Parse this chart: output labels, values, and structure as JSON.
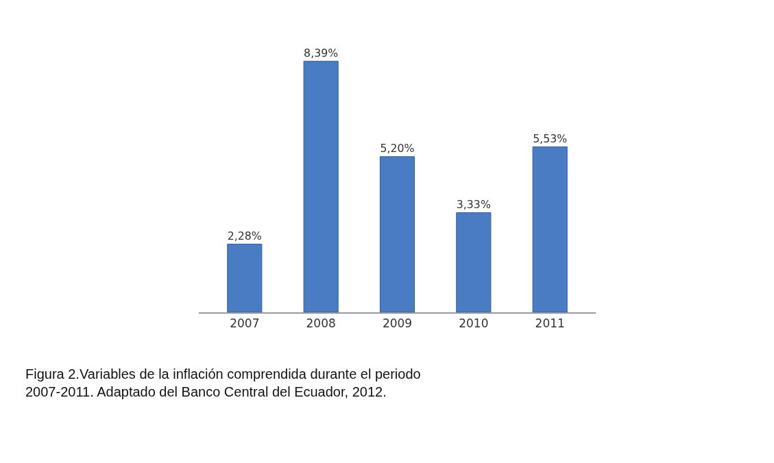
{
  "chart_data": {
    "type": "bar",
    "categories": [
      "2007",
      "2008",
      "2009",
      "2010",
      "2011"
    ],
    "values": [
      2.28,
      8.39,
      5.2,
      3.33,
      5.53
    ],
    "value_labels": [
      "2,28%",
      "8,39%",
      "5,20%",
      "3,33%",
      "5,53%"
    ],
    "color": "#4a7cc4",
    "annotations": [
      "Figura 2.Variables de la inflación comprendida durante el periodo 2007-2011. Adaptado del Banco Central del Ecuador, 2012."
    ]
  }
}
